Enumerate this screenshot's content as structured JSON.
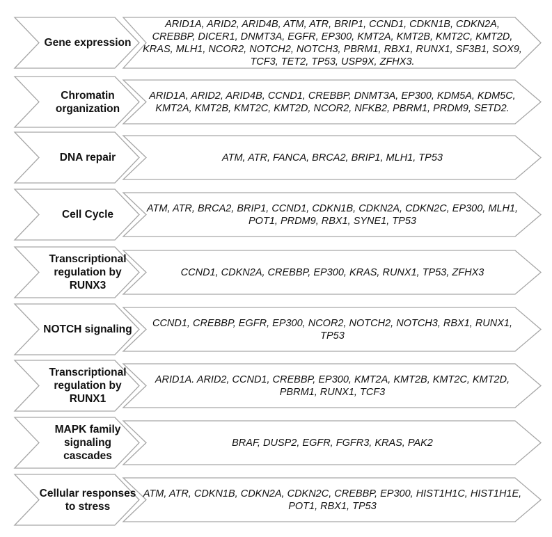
{
  "rows": [
    {
      "category": "Gene expression",
      "genes": "ARID1A, ARID2, ARID4B, ATM, ATR, BRIP1, CCND1, CDKN1B, CDKN2A, CREBBP, DICER1, DNMT3A, EGFR, EP300, KMT2A, KMT2B, KMT2C, KMT2D, KRAS, MLH1, NCOR2, NOTCH2, NOTCH3, PBRM1, RBX1, RUNX1, SF3B1, SOX9, TCF3, TET2, TP53, USP9X, ZFHX3."
    },
    {
      "category": "Chromatin organization",
      "genes": "ARID1A, ARID2, ARID4B, CCND1, CREBBP, DNMT3A, EP300, KDM5A, KDM5C, KMT2A, KMT2B, KMT2C, KMT2D, NCOR2, NFKB2, PBRM1, PRDM9, SETD2."
    },
    {
      "category": "DNA repair",
      "genes": "ATM, ATR, FANCA, BRCA2, BRIP1, MLH1, TP53"
    },
    {
      "category": "Cell Cycle",
      "genes": "ATM, ATR, BRCA2, BRIP1, CCND1, CDKN1B, CDKN2A, CDKN2C, EP300, MLH1, POT1, PRDM9, RBX1, SYNE1, TP53"
    },
    {
      "category": "Transcriptional regulation by RUNX3",
      "genes": "CCND1, CDKN2A, CREBBP, EP300, KRAS, RUNX1, TP53, ZFHX3"
    },
    {
      "category": "NOTCH signaling",
      "genes": "CCND1, CREBBP, EGFR, EP300, NCOR2, NOTCH2, NOTCH3, RBX1, RUNX1, TP53"
    },
    {
      "category": "Transcriptional regulation by RUNX1",
      "genes": "ARID1A. ARID2, CCND1, CREBBP, EP300, KMT2A, KMT2B, KMT2C, KMT2D, PBRM1, RUNX1, TCF3"
    },
    {
      "category": "MAPK family signaling cascades",
      "genes": "BRAF, DUSP2, EGFR, FGFR3, KRAS, PAK2"
    },
    {
      "category": "Cellular responses to stress",
      "genes": "ATM, ATR, CDKN1B, CDKN2A, CDKN2C, CREBBP, EP300, HIST1H1C, HIST1H1E, POT1, RBX1, TP53"
    }
  ],
  "colors": {
    "outline": "#a6a6a6",
    "fill": "#ffffff",
    "text": "#111111"
  }
}
